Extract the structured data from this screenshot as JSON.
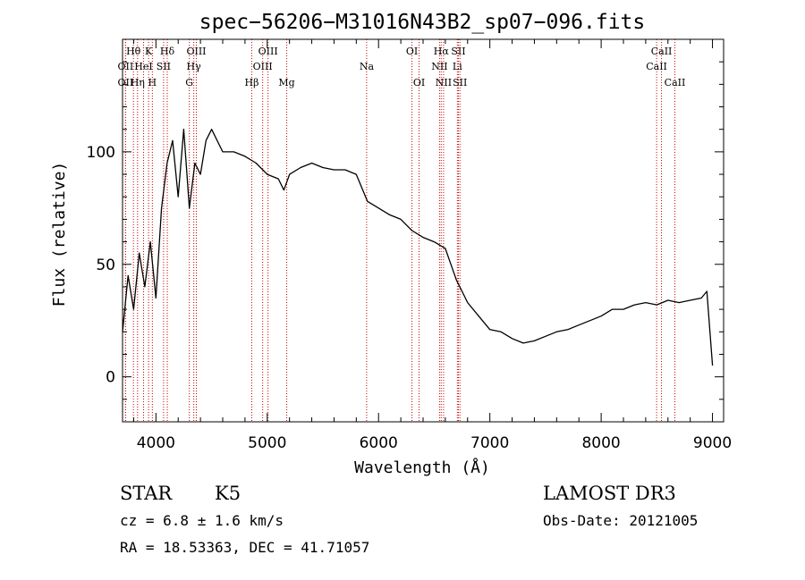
{
  "chart_data": {
    "type": "line",
    "title": "spec−56206−M31016N43B2_sp07−096.fits",
    "xlabel": "Wavelength (Å)",
    "ylabel": "Flux (relative)",
    "xlim": [
      3700,
      9100
    ],
    "ylim": [
      -20,
      150
    ],
    "xticks": [
      4000,
      5000,
      6000,
      7000,
      8000,
      9000
    ],
    "yticks": [
      0,
      50,
      100
    ],
    "xtick_labels": [
      "4000",
      "5000",
      "6000",
      "7000",
      "8000",
      "9000"
    ],
    "ytick_labels": [
      "0",
      "50",
      "100"
    ],
    "series": [
      {
        "name": "flux",
        "x": [
          3700,
          3750,
          3800,
          3850,
          3900,
          3950,
          4000,
          4050,
          4100,
          4150,
          4200,
          4250,
          4300,
          4350,
          4400,
          4450,
          4500,
          4600,
          4700,
          4800,
          4900,
          5000,
          5100,
          5150,
          5200,
          5300,
          5400,
          5500,
          5600,
          5700,
          5800,
          5900,
          6000,
          6100,
          6200,
          6300,
          6400,
          6500,
          6600,
          6650,
          6700,
          6750,
          6800,
          6900,
          7000,
          7100,
          7200,
          7300,
          7400,
          7500,
          7600,
          7700,
          7800,
          7900,
          8000,
          8100,
          8200,
          8300,
          8400,
          8500,
          8600,
          8700,
          8800,
          8900,
          8950,
          9000
        ],
        "y": [
          20,
          45,
          30,
          55,
          40,
          60,
          35,
          75,
          95,
          105,
          80,
          110,
          75,
          95,
          90,
          105,
          110,
          100,
          100,
          98,
          95,
          90,
          88,
          83,
          90,
          93,
          95,
          93,
          92,
          92,
          90,
          78,
          75,
          72,
          70,
          65,
          62,
          60,
          57,
          50,
          43,
          38,
          33,
          27,
          21,
          20,
          17,
          15,
          16,
          18,
          20,
          21,
          23,
          25,
          27,
          30,
          30,
          32,
          33,
          32,
          34,
          33,
          34,
          35,
          38,
          5
        ]
      }
    ],
    "emission_lines": [
      {
        "label": "Hθ",
        "wavelength": 3798,
        "row": 1
      },
      {
        "label": "OII",
        "wavelength": 3727,
        "row": 2
      },
      {
        "label": "OII",
        "wavelength": 3727,
        "row": 3
      },
      {
        "label": "HeI",
        "wavelength": 3889,
        "row": 2
      },
      {
        "label": "Hη",
        "wavelength": 3835,
        "row": 3
      },
      {
        "label": "K",
        "wavelength": 3934,
        "row": 1
      },
      {
        "label": "H",
        "wavelength": 3968,
        "row": 3
      },
      {
        "label": "SII",
        "wavelength": 4069,
        "row": 2
      },
      {
        "label": "Hδ",
        "wavelength": 4102,
        "row": 1
      },
      {
        "label": "OIII",
        "wavelength": 4363,
        "row": 1
      },
      {
        "label": "Hγ",
        "wavelength": 4340,
        "row": 2
      },
      {
        "label": "G",
        "wavelength": 4300,
        "row": 3
      },
      {
        "label": "Hβ",
        "wavelength": 4861,
        "row": 3
      },
      {
        "label": "OIII",
        "wavelength": 5007,
        "row": 1
      },
      {
        "label": "OIII",
        "wavelength": 4959,
        "row": 2
      },
      {
        "label": "Mg",
        "wavelength": 5175,
        "row": 3
      },
      {
        "label": "Na",
        "wavelength": 5893,
        "row": 2
      },
      {
        "label": "OI",
        "wavelength": 6300,
        "row": 1
      },
      {
        "label": "OI",
        "wavelength": 6364,
        "row": 3
      },
      {
        "label": "Hα",
        "wavelength": 6563,
        "row": 1
      },
      {
        "label": "NII",
        "wavelength": 6548,
        "row": 2
      },
      {
        "label": "NII",
        "wavelength": 6584,
        "row": 3
      },
      {
        "label": "SII",
        "wavelength": 6717,
        "row": 1
      },
      {
        "label": "Li",
        "wavelength": 6708,
        "row": 2
      },
      {
        "label": "SII",
        "wavelength": 6731,
        "row": 3
      },
      {
        "label": "CaII",
        "wavelength": 8542,
        "row": 1
      },
      {
        "label": "CaII",
        "wavelength": 8498,
        "row": 2
      },
      {
        "label": "CaII",
        "wavelength": 8662,
        "row": 3
      }
    ]
  },
  "info": {
    "class_label": "STAR",
    "subclass": "K5",
    "survey": "LAMOST DR3",
    "cz": "cz = 6.8 ± 1.6 km/s",
    "obs_date": "Obs-Date: 20121005",
    "coords": "RA =  18.53363, DEC =  41.71057"
  },
  "colors": {
    "spectrum": "#000000",
    "line_marker": "#cc0000",
    "axis": "#000000"
  }
}
